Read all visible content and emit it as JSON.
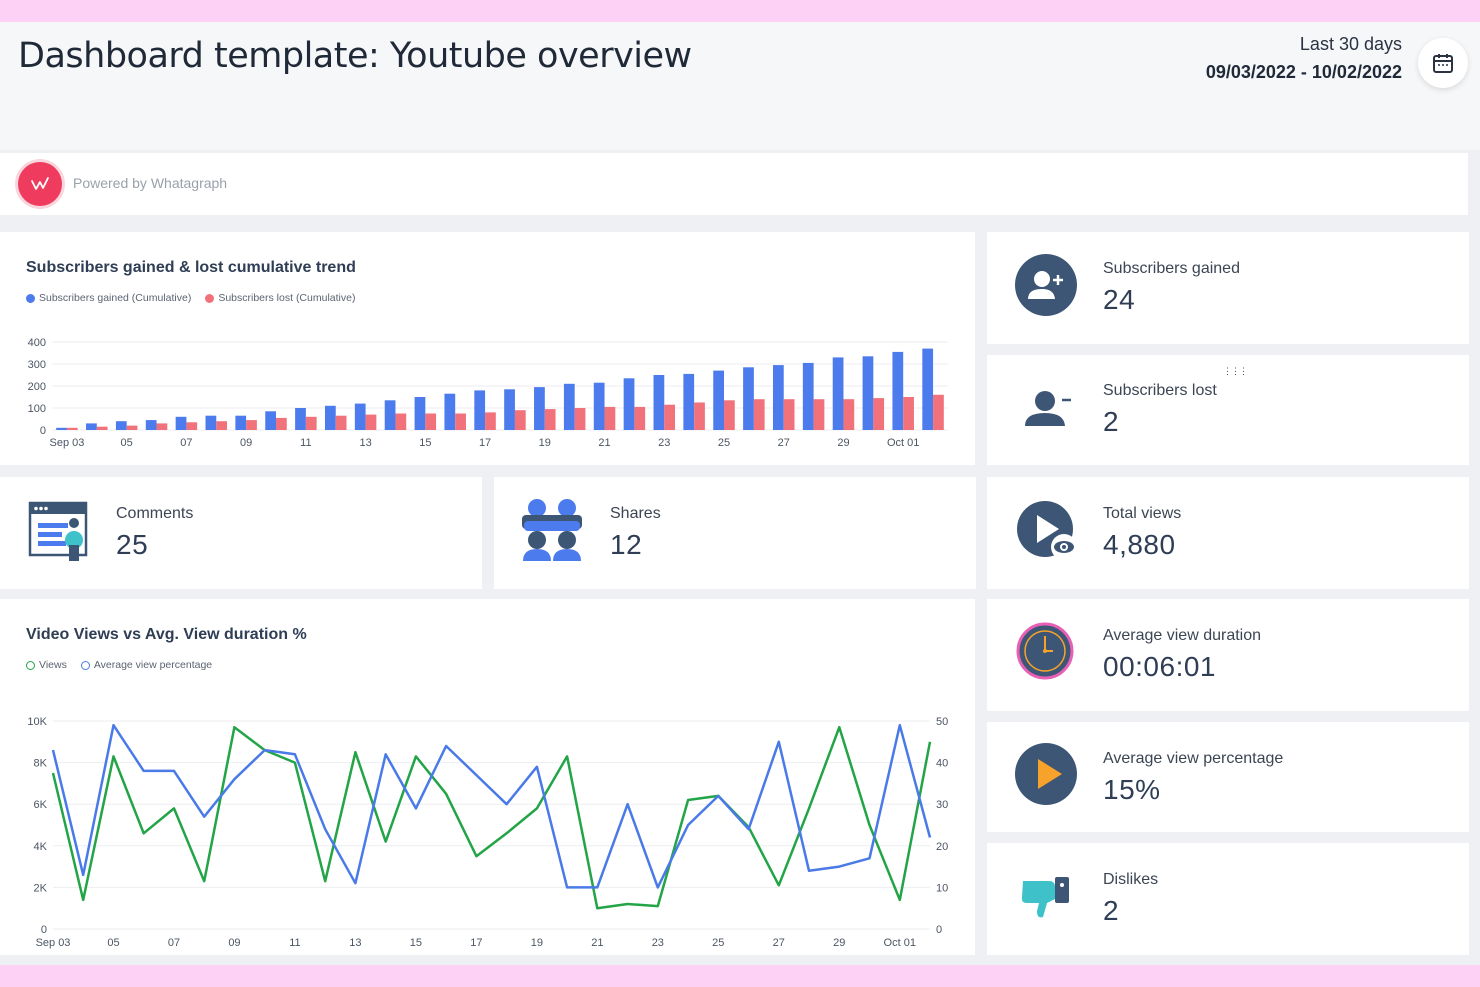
{
  "header": {
    "title": "Dashboard template: Youtube overview",
    "date_label": "Last 30 days",
    "date_range": "09/03/2022 - 10/02/2022"
  },
  "branding": {
    "powered_by": "Powered by Whatagraph",
    "logo_icon": "whatagraph-logo"
  },
  "colors": {
    "gained": "#4b7bec",
    "lost": "#f1727a",
    "views": "#22a447",
    "avg_pct": "#4a7ae8",
    "accent": "#3e5675",
    "dislike": "#3ec1c9",
    "play_accent": "#f7a32b"
  },
  "stats": {
    "subscribers_gained": {
      "label": "Subscribers gained",
      "value": "24",
      "icon": "user-plus-icon"
    },
    "subscribers_lost": {
      "label": "Subscribers lost",
      "value": "2",
      "icon": "user-minus-icon"
    },
    "comments": {
      "label": "Comments",
      "value": "25",
      "icon": "comments-icon"
    },
    "shares": {
      "label": "Shares",
      "value": "12",
      "icon": "shares-icon"
    },
    "total_views": {
      "label": "Total views",
      "value": "4,880",
      "icon": "play-eye-icon"
    },
    "avg_view_duration": {
      "label": "Average view duration",
      "value": "00:06:01",
      "icon": "clock-icon"
    },
    "avg_view_percentage": {
      "label": "Average view percentage",
      "value": "15%",
      "icon": "play-circle-icon"
    },
    "dislikes": {
      "label": "Dislikes",
      "value": "2",
      "icon": "thumbs-down-icon"
    }
  },
  "chart_data": [
    {
      "type": "bar",
      "title": "Subscribers gained & lost cumulative trend",
      "ylim": [
        0,
        400
      ],
      "yticks": [
        "0",
        "100",
        "200",
        "300",
        "400"
      ],
      "categories": [
        "Sep 03",
        "04",
        "05",
        "06",
        "07",
        "08",
        "09",
        "10",
        "11",
        "12",
        "13",
        "14",
        "15",
        "16",
        "17",
        "18",
        "19",
        "20",
        "21",
        "22",
        "23",
        "24",
        "25",
        "26",
        "27",
        "28",
        "29",
        "30",
        "Oct 01",
        "02"
      ],
      "xtick_labels": [
        "Sep 03",
        "05",
        "07",
        "09",
        "11",
        "13",
        "15",
        "17",
        "19",
        "21",
        "23",
        "25",
        "27",
        "29",
        "Oct 01"
      ],
      "series": [
        {
          "name": "Subscribers gained (Cumulative)",
          "values": [
            10,
            30,
            40,
            45,
            60,
            65,
            65,
            85,
            100,
            110,
            120,
            135,
            150,
            165,
            180,
            185,
            195,
            210,
            215,
            235,
            250,
            255,
            270,
            285,
            295,
            305,
            330,
            335,
            355,
            370
          ]
        },
        {
          "name": "Subscribers lost (Cumulative)",
          "values": [
            10,
            15,
            20,
            30,
            35,
            40,
            45,
            55,
            60,
            65,
            70,
            75,
            75,
            75,
            80,
            90,
            95,
            100,
            105,
            105,
            115,
            125,
            135,
            140,
            140,
            140,
            140,
            145,
            150,
            160
          ]
        }
      ],
      "legend": "top-left",
      "grid": true
    },
    {
      "type": "line",
      "title": "Video Views vs Avg. View duration %",
      "x": [
        "Sep 03",
        "04",
        "05",
        "06",
        "07",
        "08",
        "09",
        "10",
        "11",
        "12",
        "13",
        "14",
        "15",
        "16",
        "17",
        "18",
        "19",
        "20",
        "21",
        "22",
        "23",
        "24",
        "25",
        "26",
        "27",
        "28",
        "29",
        "30",
        "Oct 01",
        "02"
      ],
      "xtick_labels": [
        "Sep 03",
        "05",
        "07",
        "09",
        "11",
        "13",
        "15",
        "17",
        "19",
        "21",
        "23",
        "25",
        "27",
        "29",
        "Oct 01"
      ],
      "y_left": {
        "ylim": [
          0,
          10000
        ],
        "ticks": [
          "0",
          "2K",
          "4K",
          "6K",
          "8K",
          "10K"
        ]
      },
      "y_right": {
        "ylim": [
          0,
          50
        ],
        "ticks": [
          "0",
          "10",
          "20",
          "30",
          "40",
          "50"
        ]
      },
      "series": [
        {
          "name": "Views",
          "axis": "left",
          "values": [
            7500,
            1400,
            8300,
            4600,
            5800,
            2300,
            9700,
            8600,
            8000,
            2300,
            8500,
            4200,
            8300,
            6500,
            3500,
            4600,
            5800,
            8300,
            1000,
            1200,
            1100,
            6200,
            6400,
            4900,
            2100,
            5800,
            9700,
            5000,
            1400,
            9000
          ]
        },
        {
          "name": "Average view percentage",
          "axis": "right",
          "values": [
            43,
            13,
            49,
            38,
            38,
            27,
            36,
            43,
            42,
            24,
            11,
            42,
            29,
            44,
            37,
            30,
            39,
            10,
            10,
            30,
            10,
            25,
            32,
            24,
            45,
            14,
            15,
            17,
            49,
            22
          ]
        }
      ],
      "legend": "top-left",
      "grid": true
    }
  ]
}
